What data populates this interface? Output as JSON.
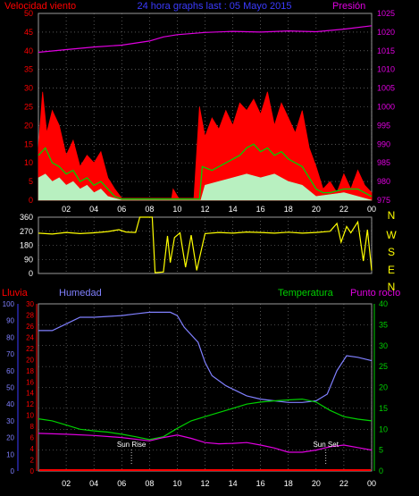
{
  "colors": {
    "background": "#000000",
    "frame": "#9a9a9a",
    "grid": "#8a8a8a",
    "red": "#ff0000",
    "blue": "#3b3bff",
    "magenta": "#e000e0",
    "green": "#00d000",
    "mint": "#b8f0c0",
    "yellow": "#ffff00",
    "periwinkle": "#8080ff",
    "white": "#ffffff",
    "tick_white": "#ffffff"
  },
  "header": {
    "left": "Velocidad viento",
    "center": "24 hora graphs last : 05 Mayo 2015",
    "right": "Presión"
  },
  "x_ticks": [
    "02",
    "04",
    "06",
    "08",
    "10",
    "12",
    "14",
    "16",
    "18",
    "20",
    "22",
    "00"
  ],
  "wind_speed": {
    "left_ticks": [
      "0",
      "5",
      "10",
      "15",
      "20",
      "25",
      "30",
      "35",
      "40",
      "45",
      "50"
    ],
    "right_ticks": [
      "975",
      "980",
      "985",
      "990",
      "995",
      "1000",
      "1005",
      "1010",
      "1015",
      "1020",
      "1025"
    ],
    "y_range": [
      0,
      50
    ],
    "pressure_range": [
      975,
      1025
    ],
    "pressure": [
      [
        0,
        1014.6
      ],
      [
        2,
        1015.3
      ],
      [
        4,
        1016.0
      ],
      [
        6,
        1016.5
      ],
      [
        8,
        1017.6
      ],
      [
        9,
        1018.7
      ],
      [
        10,
        1019.3
      ],
      [
        12,
        1019.9
      ],
      [
        14,
        1020.2
      ],
      [
        16,
        1020.0
      ],
      [
        18,
        1020.3
      ],
      [
        20,
        1020.1
      ],
      [
        22,
        1020.8
      ],
      [
        24,
        1021.7
      ]
    ],
    "gust_envelope": [
      [
        0,
        14
      ],
      [
        0.3,
        29
      ],
      [
        0.6,
        18
      ],
      [
        1,
        24
      ],
      [
        1.5,
        20
      ],
      [
        2,
        12
      ],
      [
        2.5,
        16
      ],
      [
        3,
        9
      ],
      [
        3.5,
        12
      ],
      [
        4,
        10
      ],
      [
        4.5,
        13
      ],
      [
        5,
        6
      ],
      [
        5.5,
        3
      ],
      [
        6,
        0.5
      ],
      [
        9.6,
        0.5
      ],
      [
        9.7,
        3
      ],
      [
        10.1,
        0.5
      ],
      [
        11.2,
        0.5
      ],
      [
        11.6,
        25
      ],
      [
        12.0,
        17
      ],
      [
        12.5,
        22
      ],
      [
        13,
        19
      ],
      [
        13.5,
        24
      ],
      [
        14,
        20
      ],
      [
        14.5,
        26
      ],
      [
        15,
        24
      ],
      [
        15.5,
        27
      ],
      [
        16,
        23
      ],
      [
        16.5,
        29
      ],
      [
        17,
        20
      ],
      [
        17.5,
        26
      ],
      [
        18,
        22
      ],
      [
        18.5,
        18
      ],
      [
        19,
        24
      ],
      [
        19.5,
        14
      ],
      [
        20,
        9
      ],
      [
        20.5,
        3
      ],
      [
        21,
        5
      ],
      [
        21.5,
        2
      ],
      [
        22,
        7
      ],
      [
        22.5,
        3
      ],
      [
        23,
        8
      ],
      [
        23.5,
        4
      ],
      [
        24,
        2
      ]
    ],
    "average": [
      [
        0,
        12
      ],
      [
        0.5,
        14
      ],
      [
        1,
        10
      ],
      [
        1.5,
        9
      ],
      [
        2,
        7
      ],
      [
        2.5,
        8
      ],
      [
        3,
        5
      ],
      [
        3.5,
        6
      ],
      [
        4,
        4
      ],
      [
        4.5,
        5
      ],
      [
        5,
        3
      ],
      [
        5.5,
        1
      ],
      [
        6,
        0.3
      ],
      [
        11.6,
        0.3
      ],
      [
        11.8,
        9
      ],
      [
        12.5,
        8
      ],
      [
        13,
        9
      ],
      [
        13.5,
        10
      ],
      [
        14,
        11
      ],
      [
        14.5,
        12
      ],
      [
        15,
        14
      ],
      [
        15.5,
        15
      ],
      [
        16,
        13
      ],
      [
        16.5,
        14
      ],
      [
        17,
        12
      ],
      [
        17.5,
        13
      ],
      [
        18,
        11
      ],
      [
        18.5,
        10
      ],
      [
        19,
        9
      ],
      [
        19.5,
        6
      ],
      [
        20,
        3
      ],
      [
        20.5,
        2
      ],
      [
        21,
        2
      ],
      [
        22,
        3
      ],
      [
        23,
        3
      ],
      [
        24,
        1
      ]
    ],
    "base": [
      [
        0,
        6
      ],
      [
        0.5,
        7
      ],
      [
        1,
        5
      ],
      [
        1.5,
        6
      ],
      [
        2,
        4
      ],
      [
        2.5,
        5
      ],
      [
        3,
        3
      ],
      [
        3.5,
        4
      ],
      [
        4,
        2
      ],
      [
        4.5,
        3
      ],
      [
        5,
        1
      ],
      [
        6,
        0
      ],
      [
        11.7,
        0
      ],
      [
        12,
        4
      ],
      [
        13,
        5
      ],
      [
        14,
        6
      ],
      [
        15,
        7
      ],
      [
        16,
        6
      ],
      [
        17,
        7
      ],
      [
        18,
        5
      ],
      [
        19,
        4
      ],
      [
        20,
        1
      ],
      [
        22,
        2
      ],
      [
        24,
        0
      ]
    ]
  },
  "wind_direction": {
    "left_ticks": [
      "0",
      "90",
      "180",
      "270",
      "360"
    ],
    "compass": [
      "N",
      "W",
      "S",
      "E",
      "N"
    ],
    "y_range": [
      0,
      360
    ],
    "series": [
      [
        0,
        258
      ],
      [
        1,
        252
      ],
      [
        2,
        262
      ],
      [
        3,
        255
      ],
      [
        4,
        260
      ],
      [
        5,
        268
      ],
      [
        5.8,
        280
      ],
      [
        6.3,
        265
      ],
      [
        7.0,
        262
      ],
      [
        7.3,
        360
      ],
      [
        8.2,
        360
      ],
      [
        8.4,
        5
      ],
      [
        9.0,
        10
      ],
      [
        9.3,
        240
      ],
      [
        9.5,
        70
      ],
      [
        9.8,
        230
      ],
      [
        10.2,
        260
      ],
      [
        10.6,
        40
      ],
      [
        11.0,
        245
      ],
      [
        11.4,
        20
      ],
      [
        12.0,
        255
      ],
      [
        13,
        262
      ],
      [
        14,
        258
      ],
      [
        15,
        265
      ],
      [
        16,
        262
      ],
      [
        17,
        258
      ],
      [
        18,
        264
      ],
      [
        19,
        258
      ],
      [
        20,
        262
      ],
      [
        21,
        270
      ],
      [
        21.5,
        320
      ],
      [
        21.8,
        200
      ],
      [
        22.2,
        300
      ],
      [
        22.5,
        260
      ],
      [
        23.0,
        330
      ],
      [
        23.4,
        80
      ],
      [
        23.7,
        280
      ],
      [
        24,
        20
      ]
    ]
  },
  "humidity_panel": {
    "labels": {
      "rain": "Lluvia",
      "humidity": "Humedad",
      "temperature": "Temperatura",
      "dew": "Punto rocío"
    },
    "humidity_ticks": [
      "0",
      "10",
      "20",
      "30",
      "40",
      "50",
      "60",
      "70",
      "80",
      "90",
      "100"
    ],
    "rain_ticks": [
      "0",
      "2",
      "4",
      "6",
      "8",
      "10",
      "12",
      "14",
      "16",
      "18",
      "20",
      "22",
      "24",
      "26",
      "28",
      "30"
    ],
    "temp_ticks": [
      "0",
      "5",
      "10",
      "15",
      "20",
      "25",
      "30",
      "35",
      "40"
    ],
    "humidity": [
      [
        0,
        84
      ],
      [
        1,
        84
      ],
      [
        2,
        88
      ],
      [
        3,
        92
      ],
      [
        4,
        92
      ],
      [
        6,
        93
      ],
      [
        7,
        94
      ],
      [
        8,
        95
      ],
      [
        9.5,
        95
      ],
      [
        10,
        93
      ],
      [
        10.5,
        86
      ],
      [
        11.5,
        77
      ],
      [
        12,
        65
      ],
      [
        12.5,
        57
      ],
      [
        13.5,
        51
      ],
      [
        15,
        45
      ],
      [
        16,
        43
      ],
      [
        17,
        42
      ],
      [
        18,
        41
      ],
      [
        19,
        41
      ],
      [
        20,
        42
      ],
      [
        20.8,
        46
      ],
      [
        21.5,
        60
      ],
      [
        22.2,
        69
      ],
      [
        23,
        68
      ],
      [
        24,
        66
      ]
    ],
    "temperature": [
      [
        0,
        12.5
      ],
      [
        1,
        12.0
      ],
      [
        2,
        11.0
      ],
      [
        3,
        10.0
      ],
      [
        4,
        9.6
      ],
      [
        5,
        9.3
      ],
      [
        6,
        8.8
      ],
      [
        7,
        8.2
      ],
      [
        8,
        7.5
      ],
      [
        9,
        8.2
      ],
      [
        10,
        10.2
      ],
      [
        11,
        12.0
      ],
      [
        12,
        13.0
      ],
      [
        13,
        14.0
      ],
      [
        14,
        15.0
      ],
      [
        15,
        16.0
      ],
      [
        16,
        16.5
      ],
      [
        17,
        16.8
      ],
      [
        18,
        17.0
      ],
      [
        19,
        17.2
      ],
      [
        20,
        16.5
      ],
      [
        21,
        14.5
      ],
      [
        22,
        13.0
      ],
      [
        23,
        12.4
      ],
      [
        24,
        12.0
      ]
    ],
    "dew_point": [
      [
        0,
        9.0
      ],
      [
        2,
        8.8
      ],
      [
        4,
        8.5
      ],
      [
        6,
        8.0
      ],
      [
        8,
        7.2
      ],
      [
        9,
        8.0
      ],
      [
        10,
        8.6
      ],
      [
        11,
        7.8
      ],
      [
        12,
        6.8
      ],
      [
        13,
        6.5
      ],
      [
        14,
        6.6
      ],
      [
        15,
        6.8
      ],
      [
        16,
        6.2
      ],
      [
        17,
        5.5
      ],
      [
        18,
        4.5
      ],
      [
        19,
        4.5
      ],
      [
        20,
        5.0
      ],
      [
        21,
        5.8
      ],
      [
        22,
        6.2
      ],
      [
        23,
        5.6
      ],
      [
        24,
        5.0
      ]
    ],
    "rain_total": 0,
    "events": [
      {
        "label": "Sun Rise",
        "hour": 6.7
      },
      {
        "label": "Sun Set",
        "hour": 20.7
      }
    ]
  },
  "chart_data": [
    {
      "type": "area",
      "title": "24 hora graphs last : 05 Mayo 2015",
      "x_ticks": [
        "02",
        "04",
        "06",
        "08",
        "10",
        "12",
        "14",
        "16",
        "18",
        "20",
        "22",
        "00"
      ],
      "series": [
        {
          "name": "Velocidad viento",
          "axis": "left",
          "ylim": [
            0,
            50
          ]
        },
        {
          "name": "Presión",
          "axis": "right",
          "ylim": [
            975,
            1025
          ]
        }
      ]
    },
    {
      "type": "scatter",
      "ylim": [
        0,
        360
      ],
      "y_ticks": [
        "0",
        "90",
        "180",
        "270",
        "360"
      ],
      "compass": [
        "N",
        "W",
        "S",
        "E",
        "N"
      ]
    },
    {
      "type": "line",
      "series": [
        {
          "name": "Lluvia",
          "ylim": [
            0,
            30
          ]
        },
        {
          "name": "Humedad",
          "ylim": [
            0,
            100
          ]
        },
        {
          "name": "Temperatura",
          "ylim": [
            0,
            40
          ]
        },
        {
          "name": "Punto rocío",
          "ylim": [
            0,
            40
          ]
        }
      ],
      "annotations": [
        "Sun Rise",
        "Sun Set"
      ]
    }
  ]
}
